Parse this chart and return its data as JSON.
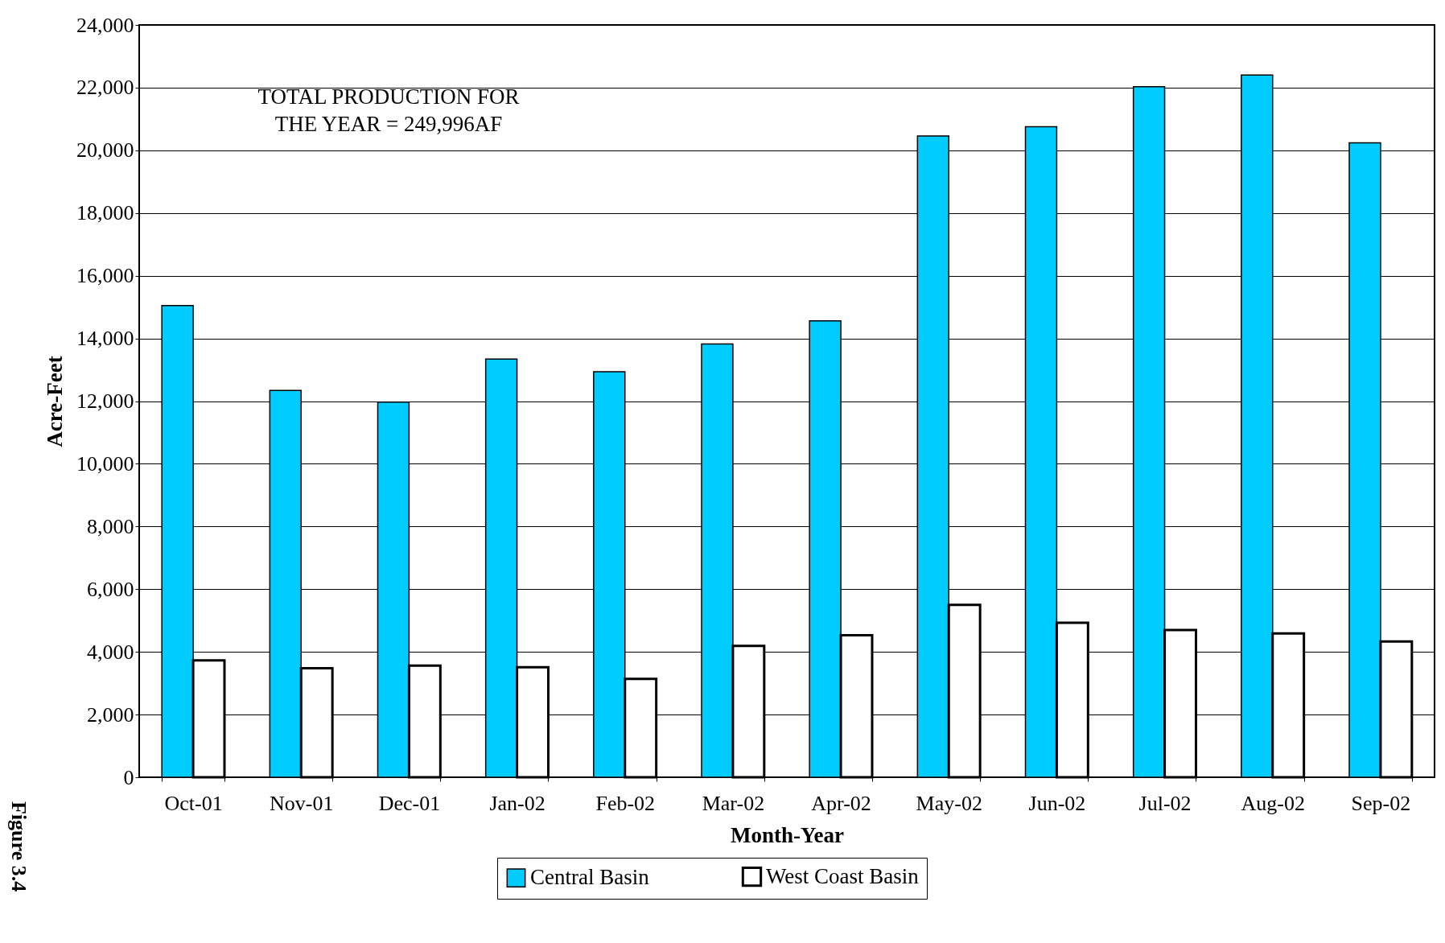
{
  "chart_data": {
    "type": "bar",
    "xlabel": "Month-Year",
    "ylabel": "Acre-Feet",
    "categories": [
      "Oct-01",
      "Nov-01",
      "Dec-01",
      "Jan-02",
      "Feb-02",
      "Mar-02",
      "Apr-02",
      "May-02",
      "Jun-02",
      "Jul-02",
      "Aug-02",
      "Sep-02"
    ],
    "series": [
      {
        "name": "Central Basin",
        "color": "#00ccff",
        "values": [
          15050,
          12340,
          11970,
          13340,
          12940,
          13820,
          14560,
          20460,
          20750,
          22030,
          22400,
          20240
        ]
      },
      {
        "name": "West Coast Basin",
        "color": "#ffffff",
        "values": [
          3730,
          3480,
          3560,
          3510,
          3140,
          4190,
          4530,
          5500,
          4930,
          4700,
          4590,
          4330
        ]
      }
    ],
    "ylim": [
      0,
      24000
    ],
    "yticks": [
      0,
      {
        "value": 2000,
        "label": "2,000"
      },
      {
        "value": 4000,
        "label": "4,000"
      },
      {
        "value": 6000,
        "label": "6,000"
      },
      {
        "value": 8000,
        "label": "8,000"
      },
      {
        "value": 10000,
        "label": "10,000"
      },
      {
        "value": 12000,
        "label": "12,000"
      },
      {
        "value": 14000,
        "label": "14,000"
      },
      {
        "value": 16000,
        "label": "16,000"
      },
      {
        "value": 18000,
        "label": "18,000"
      },
      {
        "value": 20000,
        "label": "20,000"
      },
      {
        "value": 22000,
        "label": "22,000"
      },
      {
        "value": 24000,
        "label": "24,000"
      }
    ],
    "grid": "y",
    "legend": "bottom",
    "annotations": [
      "TOTAL PRODUCTION FOR\nTHE YEAR =  249,996AF",
      "Figure 3.4"
    ]
  }
}
